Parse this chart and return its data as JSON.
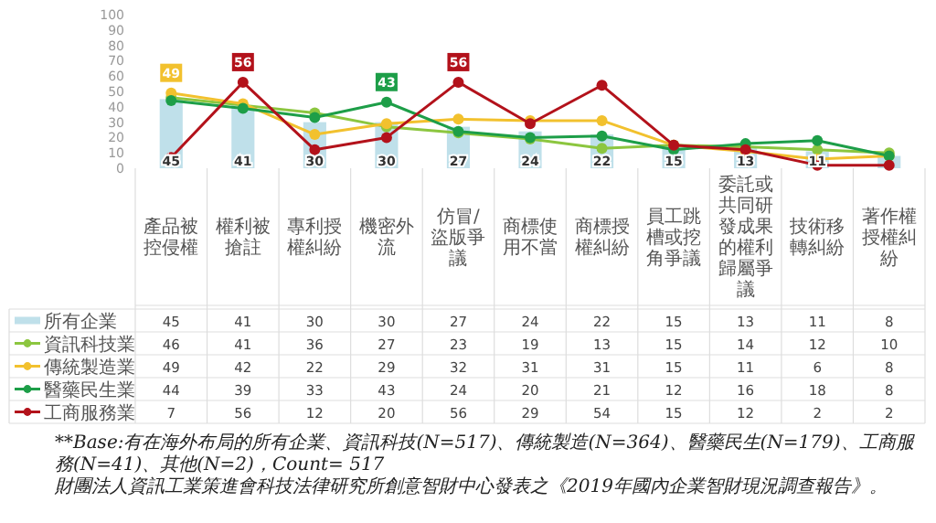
{
  "chart_data": {
    "type": "bar",
    "categories": [
      "產品被控侵權",
      "權利被搶註",
      "專利授權糾紛",
      "機密外流",
      "仿冒/盜版爭議",
      "商標使用不當",
      "商標授權糾紛",
      "員工跳槽或挖角爭議",
      "委託或共同研發成果的權利歸屬爭議",
      "技術移轉糾紛",
      "著作權授權糾紛"
    ],
    "series": [
      {
        "name": "所有企業",
        "type": "bar",
        "color": "#bfe0ea",
        "values": [
          45,
          41,
          30,
          30,
          27,
          24,
          22,
          15,
          13,
          11,
          8
        ]
      },
      {
        "name": "資訊科技業",
        "type": "line",
        "color": "#8cc63f",
        "values": [
          46,
          41,
          36,
          27,
          23,
          19,
          13,
          15,
          14,
          12,
          10
        ]
      },
      {
        "name": "傳統製造業",
        "type": "line",
        "color": "#f2c12e",
        "values": [
          49,
          42,
          22,
          29,
          32,
          31,
          31,
          15,
          11,
          6,
          8
        ]
      },
      {
        "name": "醫藥民生業",
        "type": "line",
        "color": "#1d9e48",
        "values": [
          44,
          39,
          33,
          43,
          24,
          20,
          21,
          12,
          16,
          18,
          8
        ]
      },
      {
        "name": "工商服務業",
        "type": "line",
        "color": "#b3121b",
        "values": [
          7,
          56,
          12,
          20,
          56,
          29,
          54,
          15,
          12,
          2,
          2
        ]
      }
    ],
    "ylim": [
      0,
      100
    ],
    "yticks": [
      0,
      10,
      20,
      30,
      40,
      50,
      60,
      70,
      80,
      90,
      100
    ],
    "grid": false,
    "legend": "bottom",
    "marker": "circle",
    "line_style": "solid",
    "data_labels": true,
    "annotations": [
      "**Base:有在海外布局的所有企業、資訊科技(N=517)、傳統製造(N=364)、醫藥民生(N=179)、工商服務(N=41)、其他(N=2)，Count= 517",
      "財團法人資訊工業策進會科技法律研究所創意智財中心發表之《2019年國內企業智財現況調查報告》。",
      {
        "text": "45",
        "x": "產品被控侵權",
        "y": 5
      },
      {
        "text": "41",
        "x": "權利被搶註",
        "y": 5
      },
      {
        "text": "30",
        "x": "專利授權糾紛",
        "y": 5
      },
      {
        "text": "30",
        "x": "機密外流",
        "y": 5
      },
      {
        "text": "27",
        "x": "仿冒/盜版爭議",
        "y": 5
      },
      {
        "text": "24",
        "x": "商標使用不當",
        "y": 5
      },
      {
        "text": "22",
        "x": "商標授權糾紛",
        "y": 5
      },
      {
        "text": "15",
        "x": "員工跳槽或挖角爭議",
        "y": 5
      },
      {
        "text": "13",
        "x": "委託或共同研發成果的權利歸屬爭議",
        "y": 5
      },
      {
        "text": "11",
        "x": "技術移轉糾紛",
        "y": 5
      },
      {
        "text": "49",
        "x": "產品被控侵權",
        "y": 49
      },
      {
        "text": "56",
        "x": "權利被搶註",
        "y": 56
      },
      {
        "text": "43",
        "x": "機密外流",
        "y": 43
      },
      {
        "text": "56",
        "x": "仿冒/盜版爭議",
        "y": 56
      }
    ]
  }
}
